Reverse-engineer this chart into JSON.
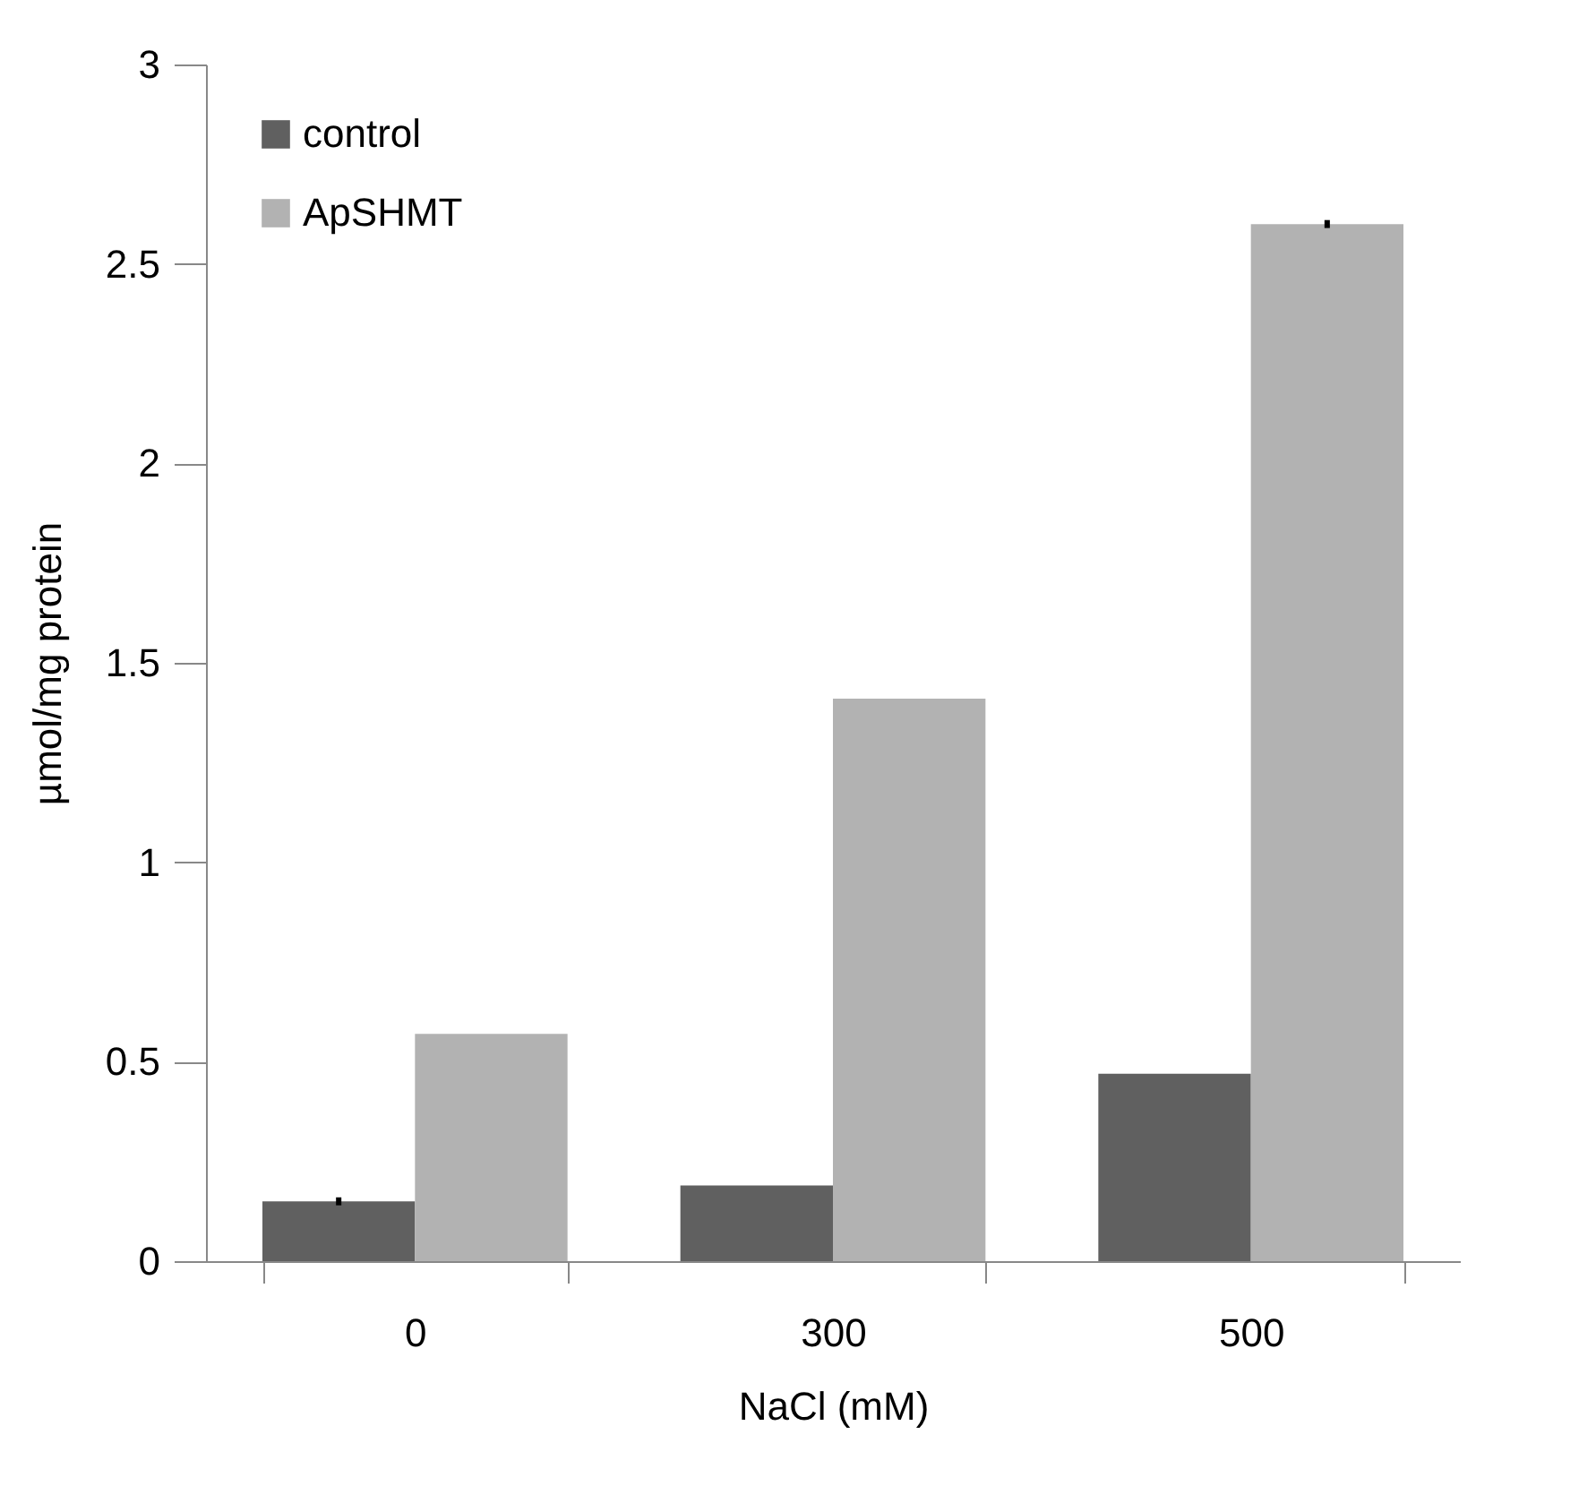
{
  "chart_data": {
    "type": "bar",
    "xlabel": "NaCl (mM)",
    "ylabel": "µmol/mg protein",
    "categories": [
      "0",
      "300",
      "500"
    ],
    "series": [
      {
        "name": "control",
        "color": "#606060",
        "values": [
          0.15,
          0.19,
          0.47
        ],
        "errors": [
          0.01,
          null,
          null
        ]
      },
      {
        "name": "ApSHMT",
        "color": "#b2b2b2",
        "values": [
          0.57,
          1.41,
          2.6
        ],
        "errors": [
          null,
          null,
          0.01
        ]
      }
    ],
    "ylim": [
      0,
      3
    ],
    "yticks": [
      0,
      0.5,
      1,
      1.5,
      2,
      2.5,
      3
    ],
    "grid": false,
    "legend": "top left"
  }
}
